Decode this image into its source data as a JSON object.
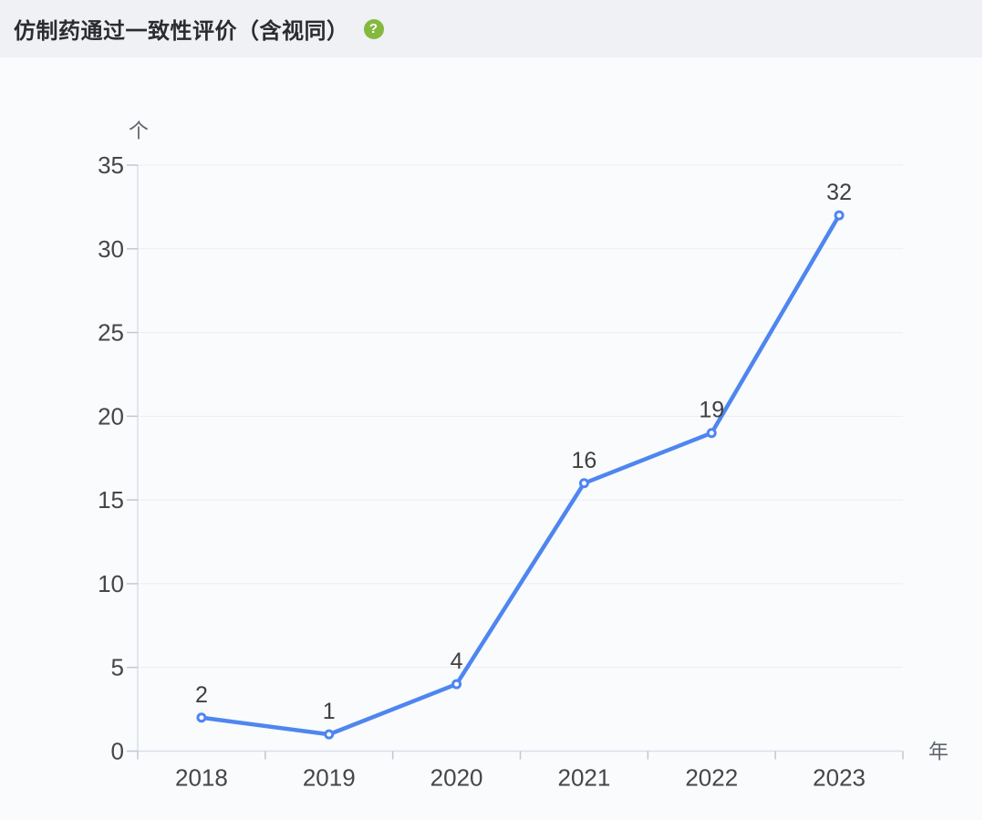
{
  "header": {
    "title": "仿制药通过一致性评价（含视同）",
    "help_glyph": "?"
  },
  "chart_data": {
    "type": "line",
    "title": "仿制药通过一致性评价（含视同）",
    "categories": [
      "2018",
      "2019",
      "2020",
      "2021",
      "2022",
      "2023"
    ],
    "values": [
      2,
      1,
      4,
      16,
      19,
      32
    ],
    "data_labels": [
      2,
      1,
      4,
      16,
      19,
      32
    ],
    "xlabel": "年",
    "ylabel": "个",
    "ylim": [
      0,
      35
    ],
    "y_ticks": [
      0,
      5,
      10,
      15,
      20,
      25,
      30,
      35
    ],
    "grid": true,
    "legend": "none",
    "marker": "hollow-circle"
  },
  "theme": {
    "page_bg": "#FFFFFF",
    "header_bg": "#EFF1F5",
    "body_bg": "#FAFBFD",
    "title_color": "#2C2C30",
    "help_icon_color": "#85B93E",
    "line_color": "#4E86F0",
    "marker_fill": "#FFFFFF",
    "grid_color": "#E9EDF2",
    "axis_color": "#D9DEE8",
    "tick_color": "#C2C7D2",
    "data_label_color": "#404040",
    "tick_label_color": "#464646",
    "unit_label_color": "#5F646B"
  }
}
